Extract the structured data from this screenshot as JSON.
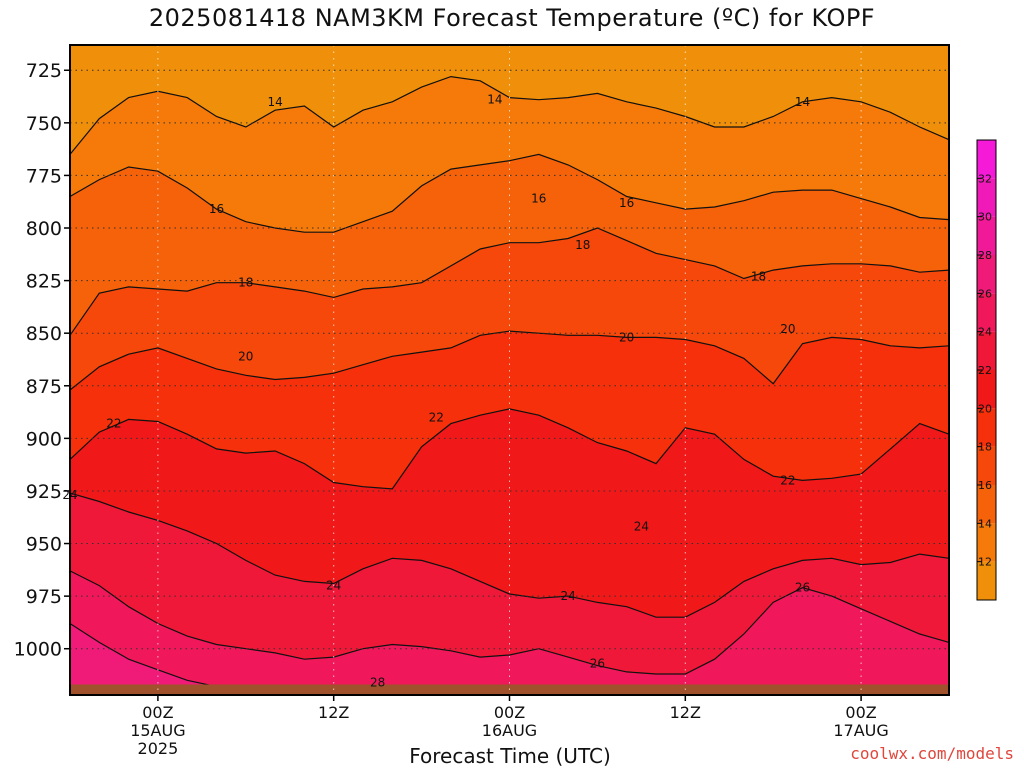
{
  "title": "2025081418 NAM3KM Forecast Temperature (ºC) for KOPF",
  "credit": "coolwx.com/models",
  "chart_data": {
    "type": "heatmap",
    "title": "2025081418 NAM3KM Forecast Temperature (ºC) for KOPF",
    "xlabel": "Forecast Time (UTC)",
    "ylabel": "",
    "x_range_hours": [
      -6,
      54
    ],
    "y_range_hpa": [
      713,
      1022
    ],
    "y_ticks": [
      725,
      750,
      775,
      800,
      825,
      850,
      875,
      900,
      925,
      950,
      975,
      1000
    ],
    "x_ticks": [
      {
        "hour": 0,
        "lines": [
          "00Z",
          "15AUG",
          "2025"
        ]
      },
      {
        "hour": 12,
        "lines": [
          "12Z"
        ]
      },
      {
        "hour": 24,
        "lines": [
          "00Z",
          "16AUG"
        ]
      },
      {
        "hour": 36,
        "lines": [
          "12Z"
        ]
      },
      {
        "hour": 48,
        "lines": [
          "00Z",
          "17AUG"
        ]
      }
    ],
    "grid": true,
    "colorbar": {
      "levels": [
        10,
        12,
        14,
        16,
        18,
        20,
        22,
        24,
        26,
        28,
        30,
        32,
        34
      ],
      "tick_labels": [
        "12",
        "14",
        "16",
        "18",
        "20",
        "22",
        "24",
        "26",
        "28",
        "30",
        "32"
      ],
      "colors": [
        "#f0900a",
        "#f57a0a",
        "#f5620a",
        "#f5480a",
        "#f5300a",
        "#f01818",
        "#f01838",
        "#f0185a",
        "#f01a78",
        "#f01a98",
        "#f01ab8",
        "#f51ad8"
      ],
      "placement": "right"
    },
    "isotherms": [
      {
        "temp": 14,
        "labels": [
          [
            8,
            740
          ],
          [
            23,
            739
          ],
          [
            44,
            740
          ]
        ],
        "points": [
          [
            -6,
            765
          ],
          [
            -4,
            748
          ],
          [
            -2,
            738
          ],
          [
            0,
            735
          ],
          [
            2,
            738
          ],
          [
            4,
            747
          ],
          [
            6,
            752
          ],
          [
            8,
            744
          ],
          [
            10,
            742
          ],
          [
            12,
            752
          ],
          [
            14,
            744
          ],
          [
            16,
            740
          ],
          [
            18,
            733
          ],
          [
            20,
            728
          ],
          [
            22,
            730
          ],
          [
            24,
            738
          ],
          [
            26,
            739
          ],
          [
            28,
            738
          ],
          [
            30,
            736
          ],
          [
            32,
            740
          ],
          [
            34,
            743
          ],
          [
            36,
            747
          ],
          [
            38,
            752
          ],
          [
            40,
            752
          ],
          [
            42,
            747
          ],
          [
            44,
            740
          ],
          [
            46,
            738
          ],
          [
            48,
            740
          ],
          [
            50,
            745
          ],
          [
            52,
            752
          ],
          [
            54,
            758
          ]
        ]
      },
      {
        "temp": 16,
        "labels": [
          [
            4,
            791
          ],
          [
            26,
            786
          ],
          [
            32,
            788
          ]
        ],
        "points": [
          [
            -6,
            785
          ],
          [
            -4,
            777
          ],
          [
            -2,
            771
          ],
          [
            0,
            773
          ],
          [
            2,
            781
          ],
          [
            4,
            791
          ],
          [
            6,
            797
          ],
          [
            8,
            800
          ],
          [
            10,
            802
          ],
          [
            12,
            802
          ],
          [
            14,
            797
          ],
          [
            16,
            792
          ],
          [
            18,
            780
          ],
          [
            20,
            772
          ],
          [
            22,
            770
          ],
          [
            24,
            768
          ],
          [
            26,
            765
          ],
          [
            28,
            770
          ],
          [
            30,
            777
          ],
          [
            32,
            785
          ],
          [
            34,
            788
          ],
          [
            36,
            791
          ],
          [
            38,
            790
          ],
          [
            40,
            787
          ],
          [
            42,
            783
          ],
          [
            44,
            782
          ],
          [
            46,
            782
          ],
          [
            48,
            786
          ],
          [
            50,
            790
          ],
          [
            52,
            795
          ],
          [
            54,
            796
          ]
        ]
      },
      {
        "temp": 18,
        "labels": [
          [
            6,
            826
          ],
          [
            29,
            808
          ],
          [
            41,
            823
          ]
        ],
        "points": [
          [
            -6,
            851
          ],
          [
            -4,
            831
          ],
          [
            -2,
            828
          ],
          [
            0,
            829
          ],
          [
            2,
            830
          ],
          [
            4,
            826
          ],
          [
            6,
            826
          ],
          [
            8,
            828
          ],
          [
            10,
            830
          ],
          [
            12,
            833
          ],
          [
            14,
            829
          ],
          [
            16,
            828
          ],
          [
            18,
            826
          ],
          [
            20,
            818
          ],
          [
            22,
            810
          ],
          [
            24,
            807
          ],
          [
            26,
            807
          ],
          [
            28,
            805
          ],
          [
            30,
            800
          ],
          [
            32,
            806
          ],
          [
            34,
            812
          ],
          [
            36,
            815
          ],
          [
            38,
            818
          ],
          [
            40,
            824
          ],
          [
            42,
            820
          ],
          [
            44,
            818
          ],
          [
            46,
            817
          ],
          [
            48,
            817
          ],
          [
            50,
            818
          ],
          [
            52,
            821
          ],
          [
            54,
            820
          ]
        ]
      },
      {
        "temp": 20,
        "labels": [
          [
            6,
            861
          ],
          [
            32,
            852
          ],
          [
            43,
            848
          ]
        ],
        "points": [
          [
            -6,
            877
          ],
          [
            -4,
            866
          ],
          [
            -2,
            860
          ],
          [
            0,
            857
          ],
          [
            2,
            862
          ],
          [
            4,
            867
          ],
          [
            6,
            870
          ],
          [
            8,
            872
          ],
          [
            10,
            871
          ],
          [
            12,
            869
          ],
          [
            14,
            865
          ],
          [
            16,
            861
          ],
          [
            18,
            859
          ],
          [
            20,
            857
          ],
          [
            22,
            851
          ],
          [
            24,
            849
          ],
          [
            26,
            850
          ],
          [
            28,
            851
          ],
          [
            30,
            851
          ],
          [
            32,
            852
          ],
          [
            34,
            852
          ],
          [
            36,
            853
          ],
          [
            38,
            856
          ],
          [
            40,
            862
          ],
          [
            42,
            874
          ],
          [
            44,
            855
          ],
          [
            46,
            852
          ],
          [
            48,
            853
          ],
          [
            50,
            856
          ],
          [
            52,
            857
          ],
          [
            54,
            856
          ]
        ]
      },
      {
        "temp": 22,
        "labels": [
          [
            -3,
            893
          ],
          [
            19,
            890
          ],
          [
            43,
            920
          ]
        ],
        "points": [
          [
            -6,
            910
          ],
          [
            -4,
            897
          ],
          [
            -2,
            891
          ],
          [
            0,
            892
          ],
          [
            2,
            898
          ],
          [
            4,
            905
          ],
          [
            6,
            907
          ],
          [
            8,
            906
          ],
          [
            10,
            912
          ],
          [
            12,
            921
          ],
          [
            14,
            923
          ],
          [
            16,
            924
          ],
          [
            18,
            904
          ],
          [
            20,
            893
          ],
          [
            22,
            889
          ],
          [
            24,
            886
          ],
          [
            26,
            889
          ],
          [
            28,
            895
          ],
          [
            30,
            902
          ],
          [
            32,
            906
          ],
          [
            34,
            912
          ],
          [
            36,
            895
          ],
          [
            38,
            898
          ],
          [
            40,
            910
          ],
          [
            42,
            918
          ],
          [
            44,
            920
          ],
          [
            46,
            919
          ],
          [
            48,
            917
          ],
          [
            50,
            905
          ],
          [
            52,
            893
          ],
          [
            54,
            898
          ]
        ]
      },
      {
        "temp": 24,
        "labels": [
          [
            -6,
            927
          ],
          [
            12,
            970
          ],
          [
            28,
            975
          ],
          [
            33,
            942
          ]
        ],
        "points": [
          [
            -6,
            926
          ],
          [
            -4,
            930
          ],
          [
            -2,
            935
          ],
          [
            0,
            939
          ],
          [
            2,
            944
          ],
          [
            4,
            950
          ],
          [
            6,
            958
          ],
          [
            8,
            965
          ],
          [
            10,
            968
          ],
          [
            12,
            969
          ],
          [
            14,
            962
          ],
          [
            16,
            957
          ],
          [
            18,
            958
          ],
          [
            20,
            962
          ],
          [
            22,
            968
          ],
          [
            24,
            974
          ],
          [
            26,
            976
          ],
          [
            28,
            975
          ],
          [
            30,
            978
          ],
          [
            32,
            980
          ],
          [
            34,
            985
          ],
          [
            36,
            985
          ],
          [
            38,
            978
          ],
          [
            40,
            968
          ],
          [
            42,
            962
          ],
          [
            44,
            958
          ],
          [
            46,
            957
          ],
          [
            48,
            960
          ],
          [
            50,
            959
          ],
          [
            52,
            955
          ],
          [
            54,
            957
          ]
        ]
      },
      {
        "temp": 26,
        "labels": [
          [
            30,
            1007
          ],
          [
            44,
            971
          ]
        ],
        "points": [
          [
            -6,
            963
          ],
          [
            -4,
            970
          ],
          [
            -2,
            980
          ],
          [
            0,
            988
          ],
          [
            2,
            994
          ],
          [
            4,
            998
          ],
          [
            6,
            1000
          ],
          [
            8,
            1002
          ],
          [
            10,
            1005
          ],
          [
            12,
            1004
          ],
          [
            14,
            1000
          ],
          [
            16,
            998
          ],
          [
            18,
            999
          ],
          [
            20,
            1001
          ],
          [
            22,
            1004
          ],
          [
            24,
            1003
          ],
          [
            26,
            1000
          ],
          [
            28,
            1004
          ],
          [
            30,
            1008
          ],
          [
            32,
            1011
          ],
          [
            34,
            1012
          ],
          [
            36,
            1012
          ],
          [
            38,
            1005
          ],
          [
            40,
            993
          ],
          [
            42,
            978
          ],
          [
            44,
            971
          ],
          [
            46,
            975
          ],
          [
            48,
            981
          ],
          [
            50,
            987
          ],
          [
            52,
            993
          ],
          [
            54,
            997
          ]
        ]
      },
      {
        "temp": 28,
        "labels": [
          [
            15,
            1016
          ]
        ],
        "points": [
          [
            -6,
            988
          ],
          [
            -4,
            997
          ],
          [
            -2,
            1005
          ],
          [
            0,
            1010
          ],
          [
            2,
            1015
          ],
          [
            4,
            1018
          ],
          [
            6,
            1022
          ]
        ]
      }
    ]
  }
}
